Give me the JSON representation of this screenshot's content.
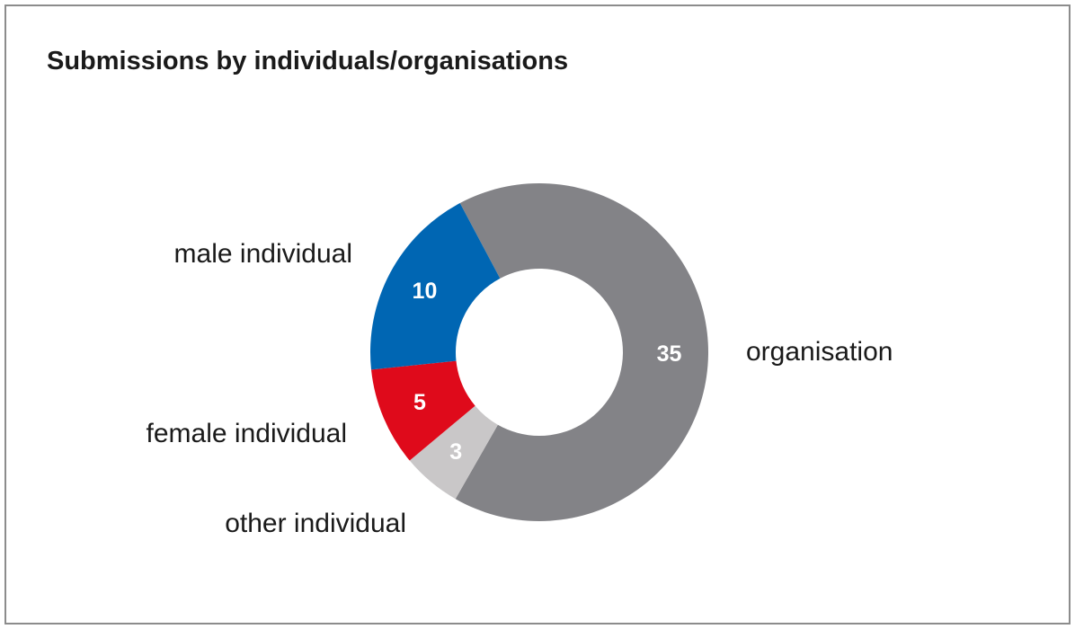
{
  "chart_data": {
    "type": "pie",
    "variant": "donut",
    "title": "Submissions by individuals/organisations",
    "slices": [
      {
        "label": "organisation",
        "value": 35,
        "color": "#838387",
        "value_color": "#ffffff"
      },
      {
        "label": "other individual",
        "value": 3,
        "color": "#c9c7c8",
        "value_color": "#ffffff"
      },
      {
        "label": "female individual",
        "value": 5,
        "color": "#df0a1b",
        "value_color": "#ffffff"
      },
      {
        "label": "male individual",
        "value": 10,
        "color": "#0066b3",
        "value_color": "#ffffff"
      }
    ],
    "legend": "none",
    "value_labels": "inside"
  }
}
